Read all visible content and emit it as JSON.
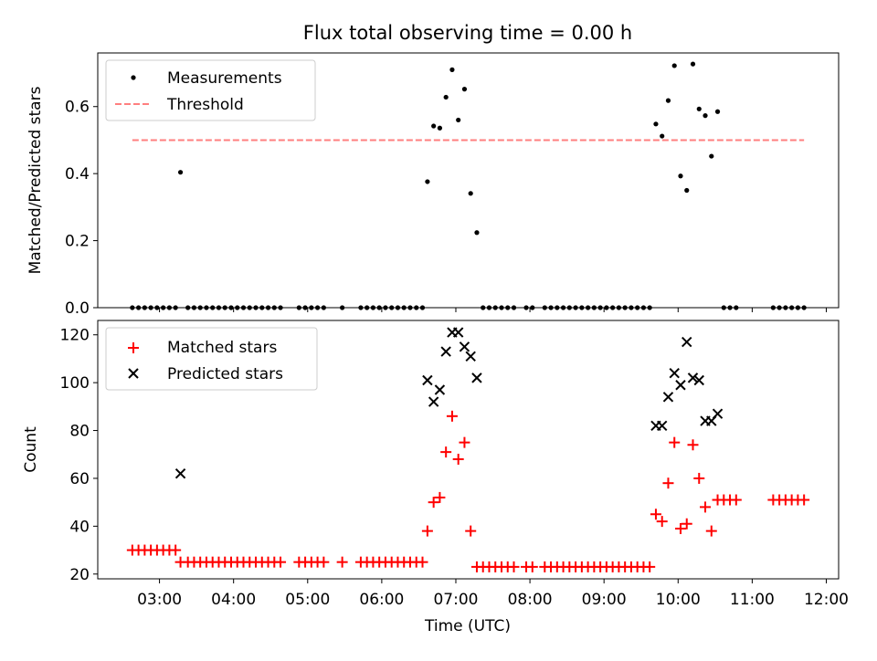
{
  "figure": {
    "title": "Flux total observing time = 0.00 h",
    "xlabel": "Time (UTC)",
    "xticks": [
      "03:00",
      "04:00",
      "05:00",
      "06:00",
      "07:00",
      "08:00",
      "09:00",
      "10:00",
      "11:00",
      "12:00"
    ]
  },
  "chart_data": [
    {
      "type": "scatter",
      "ylabel": "Matched/Predicted stars",
      "ylim": [
        0,
        0.76
      ],
      "yticks": [
        "0.0",
        "0.2",
        "0.4",
        "0.6"
      ],
      "xlim": [
        "02:10",
        "12:10"
      ],
      "grid": false,
      "legend": "top-left",
      "threshold": {
        "name": "Threshold",
        "value": 0.5,
        "x_range": [
          "02:38",
          "11:42"
        ],
        "color": "#ff7f7f",
        "style": "dashed"
      },
      "series": [
        {
          "name": "Measurements",
          "color": "#000000",
          "marker": "dot",
          "points": [
            [
              "02:38",
              0
            ],
            [
              "02:43",
              0
            ],
            [
              "02:48",
              0
            ],
            [
              "02:53",
              0
            ],
            [
              "02:58",
              0
            ],
            [
              "03:03",
              0
            ],
            [
              "03:08",
              0
            ],
            [
              "03:13",
              0
            ],
            [
              "03:17",
              0.404
            ],
            [
              "03:23",
              0
            ],
            [
              "03:28",
              0
            ],
            [
              "03:33",
              0
            ],
            [
              "03:38",
              0
            ],
            [
              "03:43",
              0
            ],
            [
              "03:48",
              0
            ],
            [
              "03:53",
              0
            ],
            [
              "03:58",
              0
            ],
            [
              "04:03",
              0
            ],
            [
              "04:08",
              0
            ],
            [
              "04:13",
              0
            ],
            [
              "04:18",
              0
            ],
            [
              "04:23",
              0
            ],
            [
              "04:28",
              0
            ],
            [
              "04:33",
              0
            ],
            [
              "04:38",
              0
            ],
            [
              "04:53",
              0
            ],
            [
              "04:58",
              0
            ],
            [
              "05:03",
              0
            ],
            [
              "05:08",
              0
            ],
            [
              "05:13",
              0
            ],
            [
              "05:28",
              0
            ],
            [
              "05:43",
              0
            ],
            [
              "05:48",
              0
            ],
            [
              "05:53",
              0
            ],
            [
              "05:58",
              0
            ],
            [
              "06:03",
              0
            ],
            [
              "06:08",
              0
            ],
            [
              "06:13",
              0
            ],
            [
              "06:18",
              0
            ],
            [
              "06:23",
              0
            ],
            [
              "06:28",
              0
            ],
            [
              "06:33",
              0
            ],
            [
              "06:37",
              0.376
            ],
            [
              "06:42",
              0.542
            ],
            [
              "06:47",
              0.536
            ],
            [
              "06:52",
              0.628
            ],
            [
              "06:57",
              0.71
            ],
            [
              "07:02",
              0.56
            ],
            [
              "07:07",
              0.652
            ],
            [
              "07:12",
              0.341
            ],
            [
              "07:17",
              0.224
            ],
            [
              "07:22",
              0
            ],
            [
              "07:27",
              0
            ],
            [
              "07:32",
              0
            ],
            [
              "07:37",
              0
            ],
            [
              "07:42",
              0
            ],
            [
              "07:47",
              0
            ],
            [
              "07:57",
              0
            ],
            [
              "08:02",
              0
            ],
            [
              "08:12",
              0
            ],
            [
              "08:17",
              0
            ],
            [
              "08:22",
              0
            ],
            [
              "08:27",
              0
            ],
            [
              "08:32",
              0
            ],
            [
              "08:37",
              0
            ],
            [
              "08:42",
              0
            ],
            [
              "08:47",
              0
            ],
            [
              "08:52",
              0
            ],
            [
              "08:57",
              0
            ],
            [
              "09:02",
              0
            ],
            [
              "09:07",
              0
            ],
            [
              "09:12",
              0
            ],
            [
              "09:17",
              0
            ],
            [
              "09:22",
              0
            ],
            [
              "09:27",
              0
            ],
            [
              "09:32",
              0
            ],
            [
              "09:37",
              0
            ],
            [
              "09:42",
              0.548
            ],
            [
              "09:47",
              0.512
            ],
            [
              "09:52",
              0.618
            ],
            [
              "09:57",
              0.722
            ],
            [
              "10:02",
              0.393
            ],
            [
              "10:07",
              0.35
            ],
            [
              "10:12",
              0.727
            ],
            [
              "10:17",
              0.593
            ],
            [
              "10:22",
              0.573
            ],
            [
              "10:27",
              0.452
            ],
            [
              "10:32",
              0.585
            ],
            [
              "10:37",
              0
            ],
            [
              "10:42",
              0
            ],
            [
              "10:47",
              0
            ],
            [
              "11:17",
              0
            ],
            [
              "11:22",
              0
            ],
            [
              "11:27",
              0
            ],
            [
              "11:32",
              0
            ],
            [
              "11:37",
              0
            ],
            [
              "11:42",
              0
            ]
          ]
        }
      ]
    },
    {
      "type": "scatter",
      "ylabel": "Count",
      "ylim": [
        18,
        126
      ],
      "yticks": [
        "20",
        "40",
        "60",
        "80",
        "100",
        "120"
      ],
      "xlim": [
        "02:10",
        "12:10"
      ],
      "grid": false,
      "legend": "top-left",
      "series": [
        {
          "name": "Matched stars",
          "color": "#ff0000",
          "marker": "plus",
          "points": [
            [
              "02:38",
              30
            ],
            [
              "02:43",
              30
            ],
            [
              "02:48",
              30
            ],
            [
              "02:53",
              30
            ],
            [
              "02:58",
              30
            ],
            [
              "03:03",
              30
            ],
            [
              "03:08",
              30
            ],
            [
              "03:13",
              30
            ],
            [
              "03:17",
              25
            ],
            [
              "03:23",
              25
            ],
            [
              "03:28",
              25
            ],
            [
              "03:33",
              25
            ],
            [
              "03:38",
              25
            ],
            [
              "03:43",
              25
            ],
            [
              "03:48",
              25
            ],
            [
              "03:53",
              25
            ],
            [
              "03:58",
              25
            ],
            [
              "04:03",
              25
            ],
            [
              "04:08",
              25
            ],
            [
              "04:13",
              25
            ],
            [
              "04:18",
              25
            ],
            [
              "04:23",
              25
            ],
            [
              "04:28",
              25
            ],
            [
              "04:33",
              25
            ],
            [
              "04:38",
              25
            ],
            [
              "04:53",
              25
            ],
            [
              "04:58",
              25
            ],
            [
              "05:03",
              25
            ],
            [
              "05:08",
              25
            ],
            [
              "05:13",
              25
            ],
            [
              "05:28",
              25
            ],
            [
              "05:43",
              25
            ],
            [
              "05:48",
              25
            ],
            [
              "05:53",
              25
            ],
            [
              "05:58",
              25
            ],
            [
              "06:03",
              25
            ],
            [
              "06:08",
              25
            ],
            [
              "06:13",
              25
            ],
            [
              "06:18",
              25
            ],
            [
              "06:23",
              25
            ],
            [
              "06:28",
              25
            ],
            [
              "06:33",
              25
            ],
            [
              "06:37",
              38
            ],
            [
              "06:42",
              50
            ],
            [
              "06:47",
              52
            ],
            [
              "06:52",
              71
            ],
            [
              "06:57",
              86
            ],
            [
              "07:02",
              68
            ],
            [
              "07:07",
              75
            ],
            [
              "07:12",
              38
            ],
            [
              "07:17",
              23
            ],
            [
              "07:22",
              23
            ],
            [
              "07:27",
              23
            ],
            [
              "07:32",
              23
            ],
            [
              "07:37",
              23
            ],
            [
              "07:42",
              23
            ],
            [
              "07:47",
              23
            ],
            [
              "07:57",
              23
            ],
            [
              "08:02",
              23
            ],
            [
              "08:12",
              23
            ],
            [
              "08:17",
              23
            ],
            [
              "08:22",
              23
            ],
            [
              "08:27",
              23
            ],
            [
              "08:32",
              23
            ],
            [
              "08:37",
              23
            ],
            [
              "08:42",
              23
            ],
            [
              "08:47",
              23
            ],
            [
              "08:52",
              23
            ],
            [
              "08:57",
              23
            ],
            [
              "09:02",
              23
            ],
            [
              "09:07",
              23
            ],
            [
              "09:12",
              23
            ],
            [
              "09:17",
              23
            ],
            [
              "09:22",
              23
            ],
            [
              "09:27",
              23
            ],
            [
              "09:32",
              23
            ],
            [
              "09:37",
              23
            ],
            [
              "09:42",
              45
            ],
            [
              "09:47",
              42
            ],
            [
              "09:52",
              58
            ],
            [
              "09:57",
              75
            ],
            [
              "10:02",
              39
            ],
            [
              "10:07",
              41
            ],
            [
              "10:12",
              74
            ],
            [
              "10:17",
              60
            ],
            [
              "10:22",
              48
            ],
            [
              "10:27",
              38
            ],
            [
              "10:32",
              51
            ],
            [
              "10:37",
              51
            ],
            [
              "10:42",
              51
            ],
            [
              "10:47",
              51
            ],
            [
              "11:17",
              51
            ],
            [
              "11:22",
              51
            ],
            [
              "11:27",
              51
            ],
            [
              "11:32",
              51
            ],
            [
              "11:37",
              51
            ],
            [
              "11:42",
              51
            ]
          ]
        },
        {
          "name": "Predicted stars",
          "color": "#000000",
          "marker": "x",
          "points": [
            [
              "03:17",
              62
            ],
            [
              "06:37",
              101
            ],
            [
              "06:42",
              92
            ],
            [
              "06:47",
              97
            ],
            [
              "06:52",
              113
            ],
            [
              "06:57",
              121
            ],
            [
              "07:02",
              121
            ],
            [
              "07:07",
              115
            ],
            [
              "07:12",
              111
            ],
            [
              "07:17",
              102
            ],
            [
              "09:42",
              82
            ],
            [
              "09:47",
              82
            ],
            [
              "09:52",
              94
            ],
            [
              "09:57",
              104
            ],
            [
              "10:02",
              99
            ],
            [
              "10:07",
              117
            ],
            [
              "10:12",
              102
            ],
            [
              "10:17",
              101
            ],
            [
              "10:22",
              84
            ],
            [
              "10:27",
              84
            ],
            [
              "10:32",
              87
            ]
          ]
        }
      ]
    }
  ]
}
